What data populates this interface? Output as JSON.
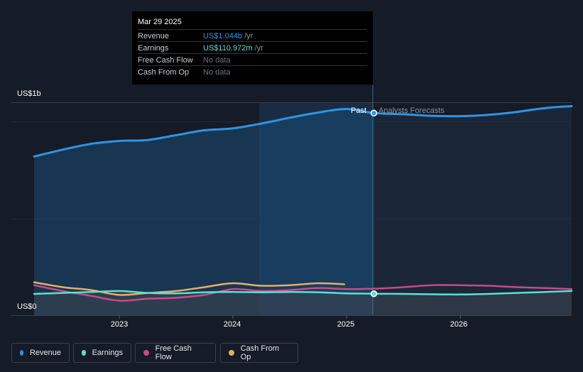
{
  "tooltip": {
    "date": "Mar 29 2025",
    "rows": [
      {
        "label": "Revenue",
        "value": "US$1.044b",
        "suffix": " /yr",
        "color": "#2d95e6"
      },
      {
        "label": "Earnings",
        "value": "US$110.972m",
        "suffix": " /yr",
        "color": "#5ce0d1"
      },
      {
        "label": "Free Cash Flow",
        "value": "No data",
        "suffix": "",
        "color": "#6d727d"
      },
      {
        "label": "Cash From Op",
        "value": "No data",
        "suffix": "",
        "color": "#6d727d"
      }
    ]
  },
  "markers": {
    "past": "Past",
    "forecast": "Analysts Forecasts"
  },
  "chart_data": {
    "type": "line",
    "y_axis": {
      "top_label": "US$1b",
      "bottom_label": "US$0",
      "ylim": [
        0,
        1.1
      ],
      "unit": "US$ billions"
    },
    "x_axis": {
      "ticks": [
        "2023",
        "2024",
        "2025",
        "2026"
      ],
      "tick_values": [
        2023,
        2024,
        2025,
        2026
      ],
      "xlim": [
        2022.25,
        2026.98
      ]
    },
    "past_end": 2025.24,
    "series": [
      {
        "name": "Revenue",
        "color": "#2d95e6",
        "points": [
          [
            2022.25,
            0.82
          ],
          [
            2022.5,
            0.855
          ],
          [
            2022.75,
            0.885
          ],
          [
            2023,
            0.9
          ],
          [
            2023.25,
            0.905
          ],
          [
            2023.5,
            0.93
          ],
          [
            2023.75,
            0.955
          ],
          [
            2024,
            0.965
          ],
          [
            2024.25,
            0.99
          ],
          [
            2024.5,
            1.02
          ],
          [
            2024.75,
            1.047
          ],
          [
            2025,
            1.065
          ],
          [
            2025.24,
            1.044
          ],
          [
            2025.5,
            1.038
          ],
          [
            2025.75,
            1.03
          ],
          [
            2026,
            1.028
          ],
          [
            2026.25,
            1.035
          ],
          [
            2026.5,
            1.05
          ],
          [
            2026.75,
            1.07
          ],
          [
            2026.98,
            1.08
          ]
        ]
      },
      {
        "name": "Earnings",
        "color": "#5ce0d1",
        "points": [
          [
            2022.25,
            0.11
          ],
          [
            2022.5,
            0.115
          ],
          [
            2022.75,
            0.12
          ],
          [
            2023,
            0.125
          ],
          [
            2023.25,
            0.115
          ],
          [
            2023.5,
            0.113
          ],
          [
            2023.75,
            0.118
          ],
          [
            2024,
            0.12
          ],
          [
            2024.25,
            0.118
          ],
          [
            2024.5,
            0.12
          ],
          [
            2024.75,
            0.118
          ],
          [
            2025,
            0.113
          ],
          [
            2025.24,
            0.111
          ],
          [
            2025.5,
            0.11
          ],
          [
            2025.75,
            0.108
          ],
          [
            2026,
            0.107
          ],
          [
            2026.25,
            0.11
          ],
          [
            2026.5,
            0.115
          ],
          [
            2026.75,
            0.12
          ],
          [
            2026.98,
            0.125
          ]
        ]
      },
      {
        "name": "Free Cash Flow",
        "color": "#c84b87",
        "points": [
          [
            2022.25,
            0.155
          ],
          [
            2022.5,
            0.125
          ],
          [
            2022.75,
            0.1
          ],
          [
            2023,
            0.075
          ],
          [
            2023.25,
            0.085
          ],
          [
            2023.5,
            0.09
          ],
          [
            2023.75,
            0.105
          ],
          [
            2024,
            0.135
          ],
          [
            2024.25,
            0.125
          ],
          [
            2024.5,
            0.13
          ],
          [
            2024.75,
            0.14
          ],
          [
            2025,
            0.135
          ],
          [
            2025.24,
            0.137
          ],
          [
            2025.5,
            0.145
          ],
          [
            2025.75,
            0.155
          ],
          [
            2026,
            0.155
          ],
          [
            2026.25,
            0.152
          ],
          [
            2026.5,
            0.145
          ],
          [
            2026.75,
            0.14
          ],
          [
            2026.98,
            0.135
          ]
        ]
      },
      {
        "name": "Cash From Op",
        "color": "#e8ae62",
        "points": [
          [
            2022.25,
            0.17
          ],
          [
            2022.5,
            0.145
          ],
          [
            2022.75,
            0.13
          ],
          [
            2023,
            0.105
          ],
          [
            2023.25,
            0.115
          ],
          [
            2023.5,
            0.125
          ],
          [
            2023.75,
            0.145
          ],
          [
            2024,
            0.165
          ],
          [
            2024.25,
            0.152
          ],
          [
            2024.5,
            0.155
          ],
          [
            2024.75,
            0.165
          ],
          [
            2024.98,
            0.16
          ]
        ]
      }
    ],
    "legend": [
      "Revenue",
      "Earnings",
      "Free Cash Flow",
      "Cash From Op"
    ]
  }
}
